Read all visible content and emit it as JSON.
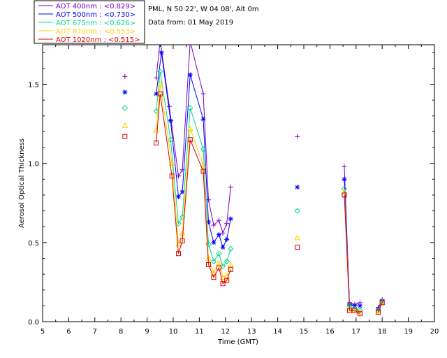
{
  "info": {
    "site": "PML, N 50 22', W 04 08', Alt 0m",
    "date": "Data from: 01 May 2019"
  },
  "colors": {
    "400nm": "#7a00c8",
    "500nm": "#0000ff",
    "675nm": "#00d890",
    "870nm": "#ffd000",
    "1020nm": "#e00000"
  },
  "chart_data": {
    "type": "line",
    "xlabel": "Time (GMT)",
    "ylabel": "Aerosol Optical Thickness",
    "xlim": [
      5,
      20
    ],
    "ylim": [
      0,
      1.75
    ],
    "xticks": [
      "5",
      "6",
      "7",
      "8",
      "9",
      "10",
      "11",
      "12",
      "13",
      "14",
      "15",
      "16",
      "17",
      "18",
      "19",
      "20"
    ],
    "yticks": [
      "0.0",
      "0.5",
      "1.0",
      "1.5"
    ],
    "grid": false,
    "legend_position": "top-left (outside plot)",
    "series": [
      {
        "name": "AOT  400nm : <0.829>",
        "key": "400nm",
        "marker": "plus",
        "points": [
          [
            8.15,
            1.55
          ],
          [
            9.35,
            1.54
          ],
          [
            9.5,
            1.78
          ],
          [
            9.85,
            1.36
          ],
          [
            10.2,
            0.92
          ],
          [
            10.35,
            0.96
          ],
          [
            10.65,
            1.77
          ],
          [
            11.15,
            1.44
          ],
          [
            11.35,
            0.77
          ],
          [
            11.55,
            0.61
          ],
          [
            11.75,
            0.64
          ],
          [
            11.9,
            0.56
          ],
          [
            12.05,
            0.62
          ],
          [
            12.2,
            0.85
          ],
          [
            14.75,
            1.17
          ],
          [
            16.55,
            0.98
          ],
          [
            16.75,
            0.12
          ],
          [
            16.95,
            0.11
          ],
          [
            17.15,
            0.12
          ],
          [
            17.85,
            0.09
          ],
          [
            18.0,
            0.14
          ]
        ]
      },
      {
        "name": "AOT  500nm : <0.730>",
        "key": "500nm",
        "marker": "asterisk",
        "points": [
          [
            8.15,
            1.45
          ],
          [
            9.35,
            1.44
          ],
          [
            9.55,
            1.7
          ],
          [
            9.9,
            1.27
          ],
          [
            10.2,
            0.79
          ],
          [
            10.35,
            0.82
          ],
          [
            10.65,
            1.56
          ],
          [
            11.15,
            1.28
          ],
          [
            11.35,
            0.63
          ],
          [
            11.55,
            0.5
          ],
          [
            11.75,
            0.55
          ],
          [
            11.9,
            0.47
          ],
          [
            12.05,
            0.52
          ],
          [
            12.2,
            0.65
          ],
          [
            14.75,
            0.85
          ],
          [
            16.55,
            0.9
          ],
          [
            16.75,
            0.11
          ],
          [
            16.95,
            0.1
          ],
          [
            17.15,
            0.1
          ],
          [
            17.85,
            0.08
          ],
          [
            18.0,
            0.13
          ]
        ]
      },
      {
        "name": "AOT  675nm : <0.626>",
        "key": "675nm",
        "marker": "diamond",
        "points": [
          [
            8.15,
            1.35
          ],
          [
            9.35,
            1.33
          ],
          [
            9.5,
            1.58
          ],
          [
            9.9,
            1.15
          ],
          [
            10.2,
            0.62
          ],
          [
            10.35,
            0.66
          ],
          [
            10.65,
            1.35
          ],
          [
            11.15,
            1.09
          ],
          [
            11.35,
            0.49
          ],
          [
            11.55,
            0.38
          ],
          [
            11.75,
            0.43
          ],
          [
            11.9,
            0.35
          ],
          [
            12.05,
            0.38
          ],
          [
            12.2,
            0.46
          ],
          [
            14.75,
            0.7
          ],
          [
            16.55,
            0.84
          ],
          [
            16.75,
            0.1
          ],
          [
            16.95,
            0.08
          ],
          [
            17.15,
            0.07
          ],
          [
            17.85,
            0.07
          ],
          [
            18.0,
            0.13
          ]
        ]
      },
      {
        "name": "AOT  870nm : <0.553>",
        "key": "870nm",
        "marker": "triangle",
        "points": [
          [
            8.15,
            1.24
          ],
          [
            9.35,
            1.21
          ],
          [
            9.5,
            1.5
          ],
          [
            9.95,
            1.0
          ],
          [
            10.2,
            0.49
          ],
          [
            10.35,
            0.56
          ],
          [
            10.65,
            1.22
          ],
          [
            11.15,
            0.99
          ],
          [
            11.35,
            0.4
          ],
          [
            11.55,
            0.31
          ],
          [
            11.75,
            0.37
          ],
          [
            11.9,
            0.28
          ],
          [
            12.05,
            0.29
          ],
          [
            12.2,
            0.36
          ],
          [
            14.75,
            0.53
          ],
          [
            16.55,
            0.82
          ],
          [
            16.75,
            0.08
          ],
          [
            16.95,
            0.07
          ],
          [
            17.15,
            0.06
          ],
          [
            17.85,
            0.06
          ],
          [
            18.0,
            0.12
          ]
        ]
      },
      {
        "name": "AOT 1020nm : <0.515>",
        "key": "1020nm",
        "marker": "square",
        "points": [
          [
            8.15,
            1.17
          ],
          [
            9.35,
            1.13
          ],
          [
            9.5,
            1.44
          ],
          [
            9.95,
            0.92
          ],
          [
            10.2,
            0.43
          ],
          [
            10.35,
            0.51
          ],
          [
            10.65,
            1.15
          ],
          [
            11.15,
            0.95
          ],
          [
            11.35,
            0.36
          ],
          [
            11.55,
            0.28
          ],
          [
            11.75,
            0.34
          ],
          [
            11.9,
            0.24
          ],
          [
            12.05,
            0.26
          ],
          [
            12.2,
            0.33
          ],
          [
            14.75,
            0.47
          ],
          [
            16.55,
            0.8
          ],
          [
            16.75,
            0.07
          ],
          [
            16.95,
            0.07
          ],
          [
            17.15,
            0.05
          ],
          [
            17.85,
            0.06
          ],
          [
            18.0,
            0.12
          ]
        ]
      }
    ]
  }
}
